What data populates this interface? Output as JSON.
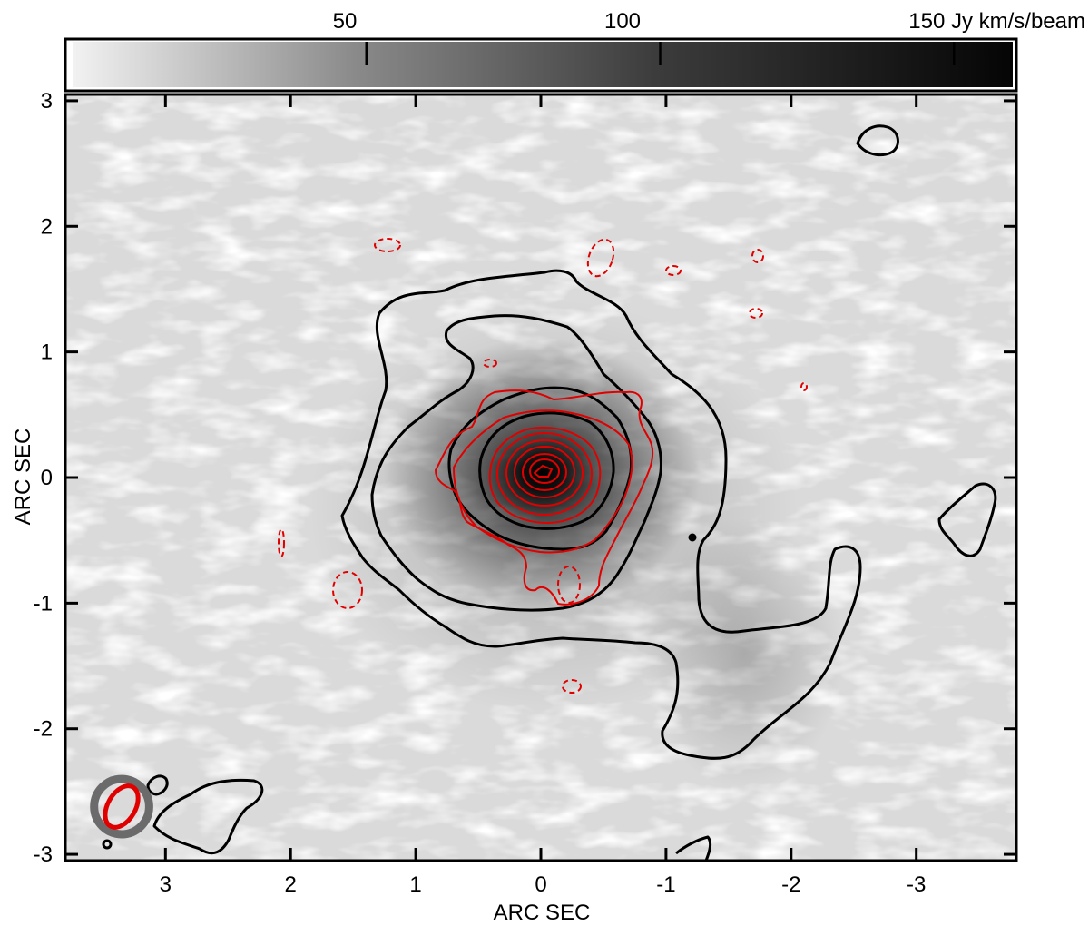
{
  "chart_data": {
    "type": "heatmap",
    "colorbar": {
      "ticks": [
        50,
        100,
        150
      ],
      "tick_labels": [
        "50",
        "100",
        "150 Jy km/s/beam"
      ],
      "range": [
        0,
        160
      ],
      "colormap": "grayscale (white = low, black = high)"
    },
    "xaxis": {
      "label": "ARC SEC",
      "ticks": [
        3,
        2,
        1,
        0,
        -1,
        -2,
        -3
      ],
      "tick_labels": [
        "3",
        "2",
        "1",
        "0",
        "-1",
        "-2",
        "-3"
      ],
      "range": [
        3.8,
        -3.8
      ]
    },
    "yaxis": {
      "label": "ARC SEC",
      "ticks": [
        3,
        2,
        1,
        0,
        -1,
        -2,
        -3
      ],
      "tick_labels": [
        "3",
        "2",
        "1",
        "0",
        "-1",
        "-2",
        "-3"
      ],
      "range": [
        -3.05,
        3.05
      ]
    },
    "image_peak": {
      "x": 0.0,
      "y": 0.0
    },
    "contour_sets": [
      {
        "color": "#000000",
        "style": "solid",
        "levels": 4
      },
      {
        "color": "#e00000",
        "style": "solid / dashed (negative)",
        "levels": 9
      }
    ],
    "beams": [
      {
        "color": "#6b6b6b",
        "x": 3.35,
        "y": -2.62,
        "major": 0.44,
        "minor": 0.44,
        "pa": 0
      },
      {
        "color": "#e00000",
        "x": 3.35,
        "y": -2.62,
        "major": 0.36,
        "minor": 0.22,
        "pa": 60
      }
    ]
  }
}
